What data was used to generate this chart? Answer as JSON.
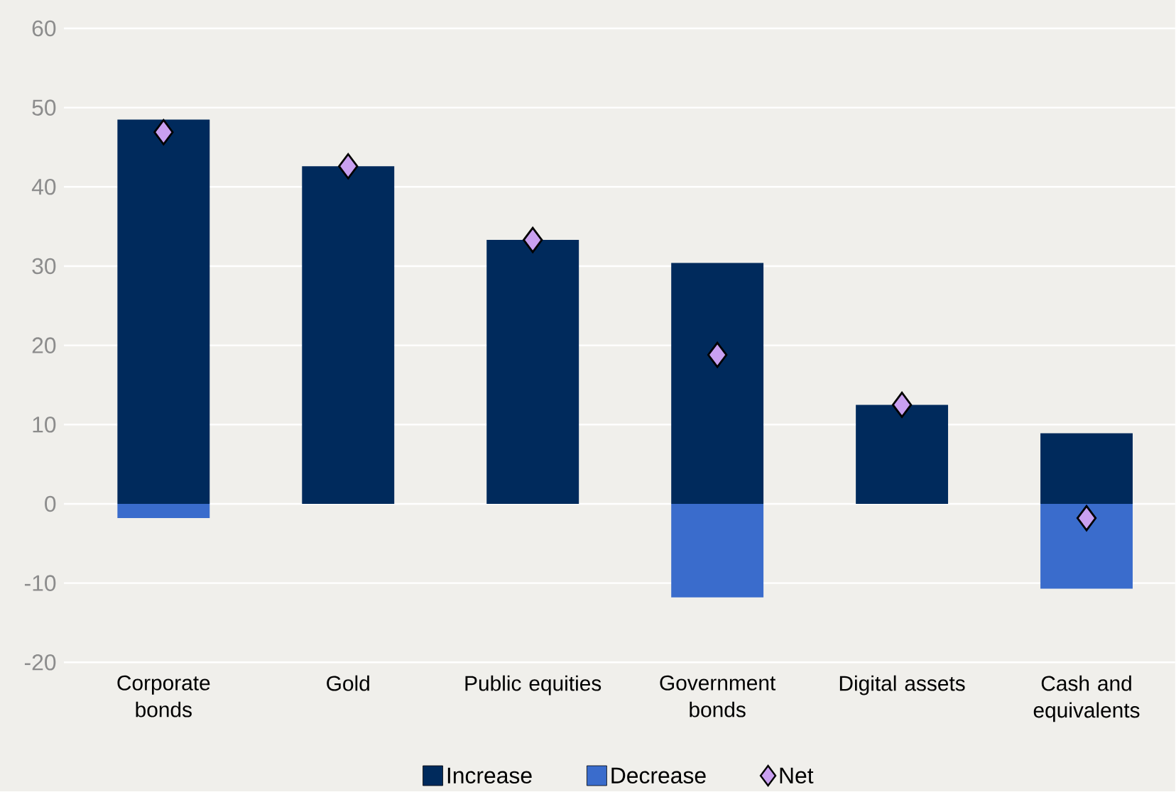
{
  "chart_data": {
    "type": "bar",
    "stacked": true,
    "categories": [
      "Corporate bonds",
      "Gold",
      "Public equities",
      "Government bonds",
      "Digital assets",
      "Cash and equivalents"
    ],
    "series": [
      {
        "name": "Increase",
        "color": "#002a5c",
        "values": [
          48.5,
          42.6,
          33.3,
          30.4,
          12.5,
          8.9
        ]
      },
      {
        "name": "Decrease",
        "color": "#3a6ccc",
        "values": [
          -1.8,
          0,
          0,
          -11.8,
          0,
          -10.7
        ]
      },
      {
        "name": "Net",
        "type": "scatter",
        "color": "#c9a0f0",
        "marker": "diamond",
        "values": [
          46.9,
          42.6,
          33.3,
          18.8,
          12.5,
          -1.8
        ]
      }
    ],
    "ylim": [
      -20,
      60
    ],
    "yticks": [
      -20,
      -10,
      0,
      10,
      20,
      30,
      40,
      50,
      60
    ],
    "grid": "y",
    "legend": "bottom"
  }
}
